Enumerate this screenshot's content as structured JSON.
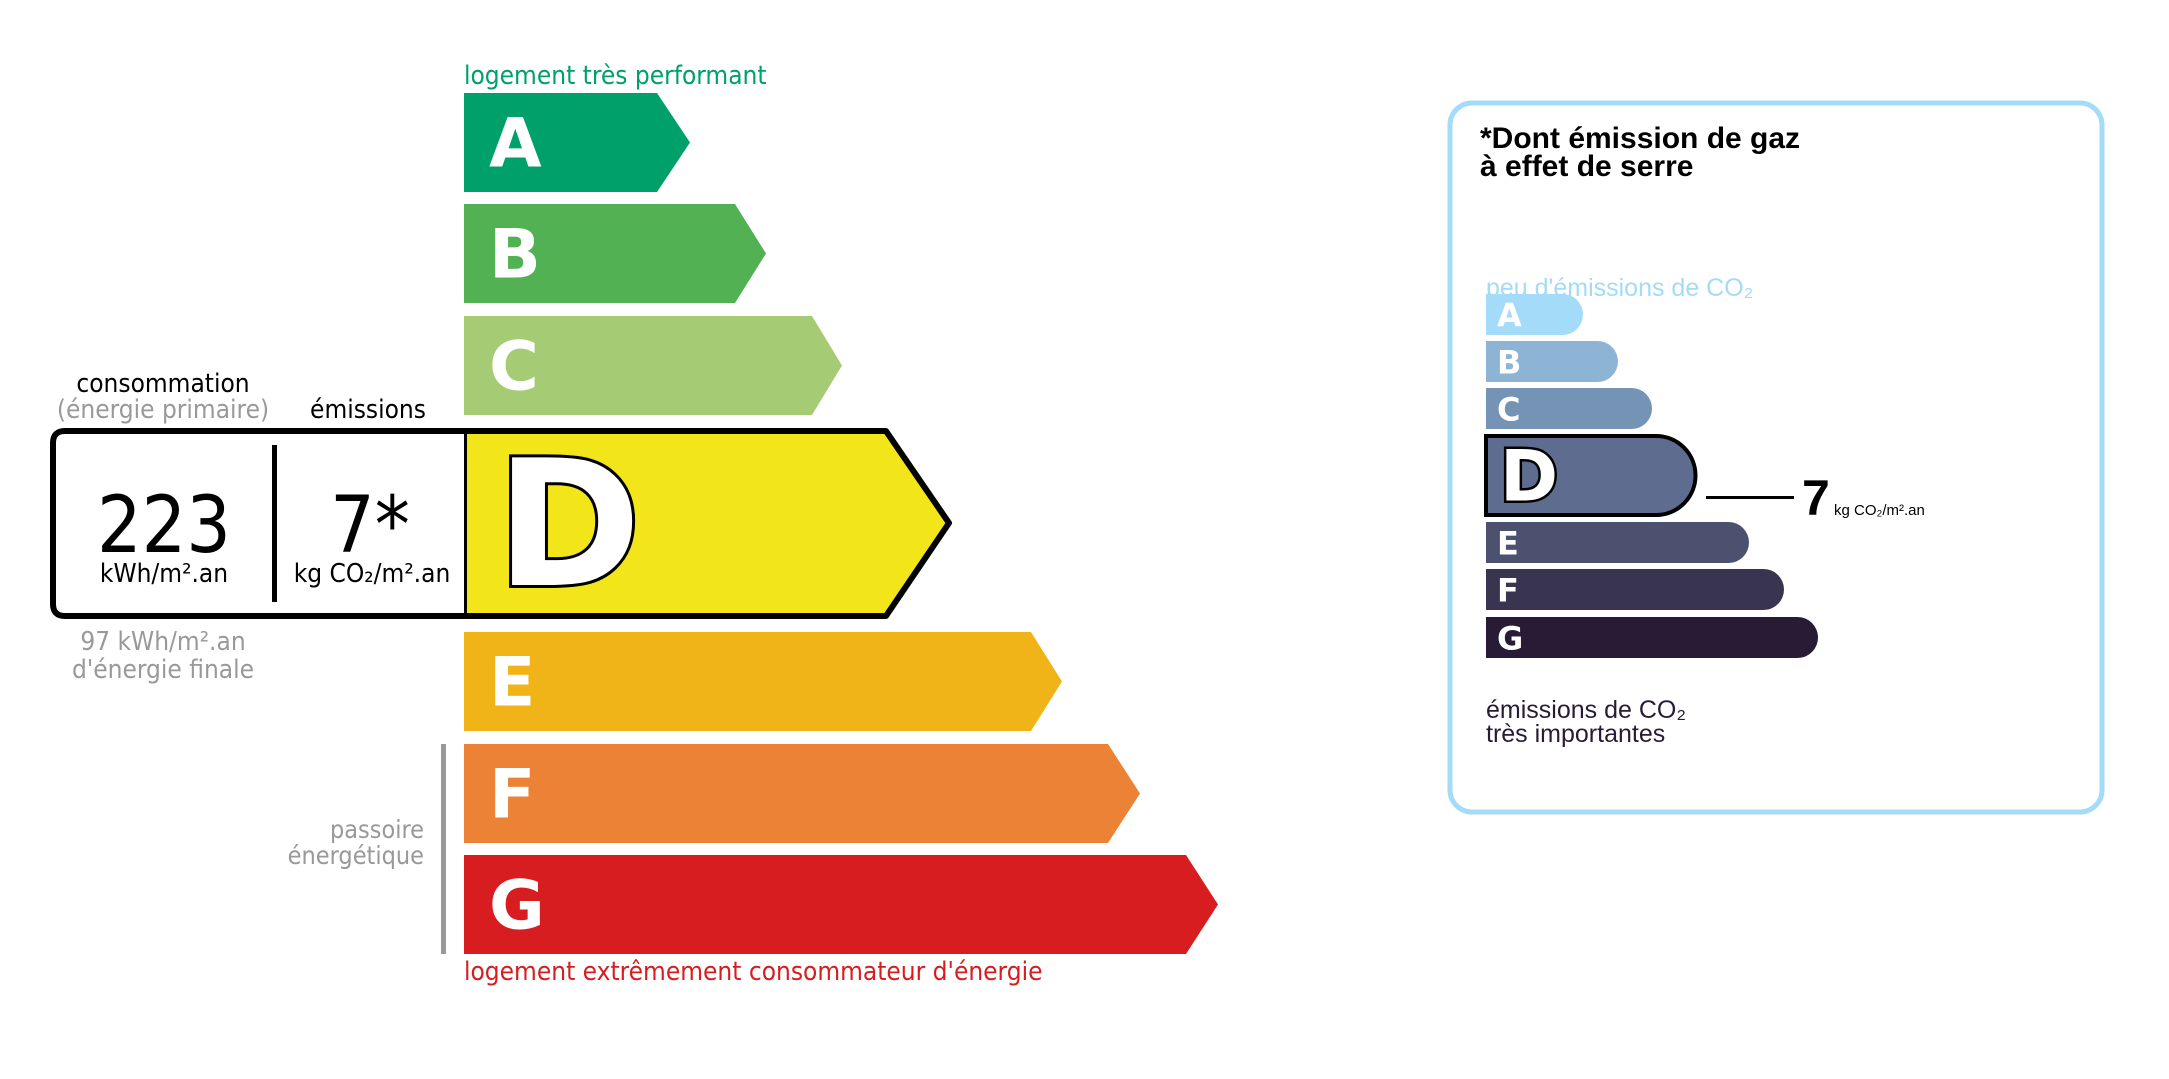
{
  "energy": {
    "top_label": "logement très performant",
    "bottom_label": "logement extrêmement consommateur d'énergie",
    "passoire_line1": "passoire",
    "passoire_line2": "énergétique",
    "consumption_label": "consommation",
    "consumption_sublabel": "(énergie primaire)",
    "emissions_label": "émissions",
    "consumption_value": "223",
    "consumption_unit": "kWh/m².an",
    "emissions_value": "7*",
    "emissions_unit": "kg CO₂/m².an",
    "final_energy_value": "97 kWh/m².an",
    "final_energy_label": "d'énergie finale",
    "current_class": "D",
    "classes": [
      {
        "letter": "A",
        "color": "#00a06b"
      },
      {
        "letter": "B",
        "color": "#52b153"
      },
      {
        "letter": "C",
        "color": "#a5cc74"
      },
      {
        "letter": "D",
        "color": "#f2e61b"
      },
      {
        "letter": "E",
        "color": "#f0b418"
      },
      {
        "letter": "F",
        "color": "#eb8235"
      },
      {
        "letter": "G",
        "color": "#d71d20"
      }
    ],
    "top_label_color": "#00a06b",
    "bottom_label_color": "#d71d20"
  },
  "ghg": {
    "title_line1": "*Dont émission de gaz",
    "title_line2": "à effet de serre",
    "top_label": "peu d'émissions de CO₂",
    "bottom_label_line1": "émissions de CO₂",
    "bottom_label_line2": "très importantes",
    "current_class": "D",
    "value": "7",
    "unit": "kg CO₂/m².an",
    "border_color": "#a4dbf8",
    "classes": [
      {
        "letter": "A",
        "color": "#a4dbf8"
      },
      {
        "letter": "B",
        "color": "#8db3d5"
      },
      {
        "letter": "C",
        "color": "#7593b5"
      },
      {
        "letter": "D",
        "color": "#5e6d8f"
      },
      {
        "letter": "E",
        "color": "#4d5170"
      },
      {
        "letter": "F",
        "color": "#393551"
      },
      {
        "letter": "G",
        "color": "#281b35"
      }
    ]
  }
}
